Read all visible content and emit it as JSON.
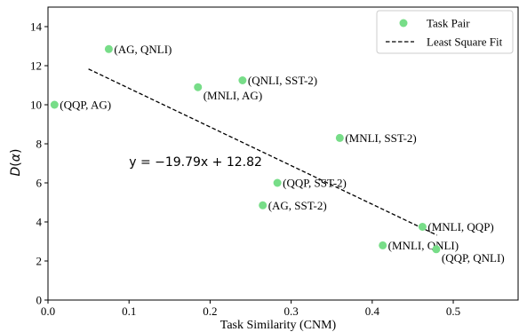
{
  "chart_data": {
    "type": "scatter",
    "xlabel": "Task Similarity (CNM)",
    "ylabel_prefix": "D",
    "ylabel_arg": "α",
    "xlim": [
      0.0,
      0.58
    ],
    "ylim": [
      0,
      15
    ],
    "xticks": [
      0.0,
      0.1,
      0.2,
      0.3,
      0.4,
      0.5
    ],
    "xtick_labels": [
      "0.0",
      "0.1",
      "0.2",
      "0.3",
      "0.4",
      "0.5"
    ],
    "yticks": [
      0,
      2,
      4,
      6,
      8,
      10,
      12,
      14
    ],
    "ytick_labels": [
      "0",
      "2",
      "4",
      "6",
      "8",
      "10",
      "12",
      "14"
    ],
    "grid": false,
    "legend_position": "top-right",
    "series": [
      {
        "name": "Task Pair",
        "kind": "scatter",
        "color": "#77dd88",
        "points": [
          {
            "label": "(QQP, AG)",
            "x": 0.008,
            "y": 10.0,
            "label_side": "right"
          },
          {
            "label": "(AG, QNLI)",
            "x": 0.075,
            "y": 12.85,
            "label_side": "right"
          },
          {
            "label": "(MNLI, AG)",
            "x": 0.185,
            "y": 10.9,
            "label_side": "below-right"
          },
          {
            "label": "(QNLI, SST-2)",
            "x": 0.24,
            "y": 11.25,
            "label_side": "right"
          },
          {
            "label": "(AG, SST-2)",
            "x": 0.265,
            "y": 4.85,
            "label_side": "right"
          },
          {
            "label": "(QQP, SST-2)",
            "x": 0.283,
            "y": 6.0,
            "label_side": "right"
          },
          {
            "label": "(MNLI, SST-2)",
            "x": 0.36,
            "y": 8.3,
            "label_side": "right"
          },
          {
            "label": "(MNLI, QNLI)",
            "x": 0.413,
            "y": 2.8,
            "label_side": "right"
          },
          {
            "label": "(MNLI, QQP)",
            "x": 0.462,
            "y": 3.75,
            "label_side": "right"
          },
          {
            "label": "(QQP, QNLI)",
            "x": 0.479,
            "y": 2.6,
            "label_side": "below-right"
          }
        ]
      },
      {
        "name": "Least Square Fit",
        "kind": "line",
        "style": "dashed",
        "color": "#000000",
        "slope": -19.79,
        "intercept": 12.82,
        "x_range": [
          0.05,
          0.48
        ]
      }
    ],
    "annotations": [
      {
        "text": "y = −19.79x + 12.82",
        "x": 0.1,
        "y": 7.1
      }
    ]
  }
}
